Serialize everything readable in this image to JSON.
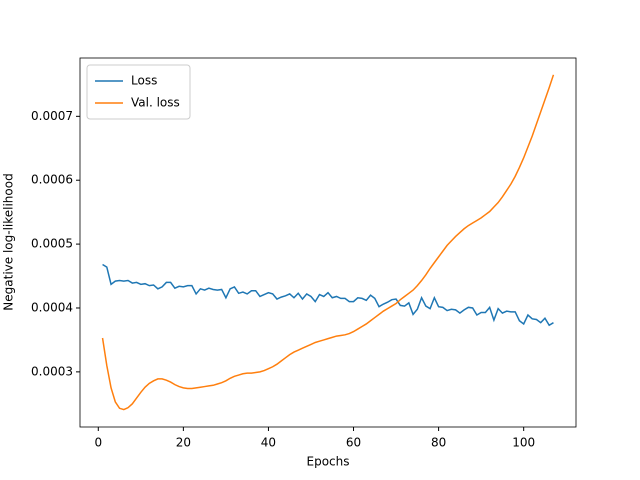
{
  "chart_data": {
    "type": "line",
    "xlabel": "Epochs",
    "ylabel": "Negative log-likelihood",
    "x": [
      1,
      2,
      3,
      4,
      5,
      6,
      7,
      8,
      9,
      10,
      11,
      12,
      13,
      14,
      15,
      16,
      17,
      18,
      19,
      20,
      21,
      22,
      23,
      24,
      25,
      26,
      27,
      28,
      29,
      30,
      31,
      32,
      33,
      34,
      35,
      36,
      37,
      38,
      39,
      40,
      41,
      42,
      43,
      44,
      45,
      46,
      47,
      48,
      49,
      50,
      51,
      52,
      53,
      54,
      55,
      56,
      57,
      58,
      59,
      60,
      61,
      62,
      63,
      64,
      65,
      66,
      67,
      68,
      69,
      70,
      71,
      72,
      73,
      74,
      75,
      76,
      77,
      78,
      79,
      80,
      81,
      82,
      83,
      84,
      85,
      86,
      87,
      88,
      89,
      90,
      91,
      92,
      93,
      94,
      95,
      96,
      97,
      98,
      99,
      100,
      101,
      102,
      103,
      104,
      105,
      106,
      107
    ],
    "series": [
      {
        "name": "Loss",
        "color": "#1f77b4",
        "values": [
          0.000468,
          0.000464,
          0.000437,
          0.000442,
          0.000443,
          0.000442,
          0.000443,
          0.000439,
          0.00044,
          0.000437,
          0.000438,
          0.000435,
          0.000436,
          0.00043,
          0.000433,
          0.00044,
          0.00044,
          0.000431,
          0.000434,
          0.000433,
          0.000435,
          0.000435,
          0.000422,
          0.00043,
          0.000428,
          0.000431,
          0.000429,
          0.000428,
          0.000429,
          0.000416,
          0.00043,
          0.000433,
          0.000423,
          0.000425,
          0.000422,
          0.000427,
          0.000427,
          0.000418,
          0.000421,
          0.000424,
          0.000422,
          0.000414,
          0.000417,
          0.000419,
          0.000422,
          0.000416,
          0.000423,
          0.000414,
          0.000422,
          0.000418,
          0.00041,
          0.000421,
          0.000418,
          0.000424,
          0.000416,
          0.000418,
          0.000415,
          0.000415,
          0.00041,
          0.00041,
          0.000416,
          0.000415,
          0.000412,
          0.00042,
          0.000415,
          0.000402,
          0.000406,
          0.000409,
          0.000413,
          0.000414,
          0.000404,
          0.000403,
          0.000408,
          0.00039,
          0.000398,
          0.000416,
          0.000403,
          0.000399,
          0.000416,
          0.000402,
          0.000401,
          0.000396,
          0.000398,
          0.000397,
          0.000392,
          0.000397,
          0.000401,
          0.0004,
          0.000389,
          0.000393,
          0.000393,
          0.000401,
          0.000381,
          0.000399,
          0.000392,
          0.000395,
          0.000394,
          0.000394,
          0.00038,
          0.000375,
          0.000389,
          0.000383,
          0.000382,
          0.000377,
          0.000384,
          0.000373,
          0.000377
        ]
      },
      {
        "name": "Val. loss",
        "color": "#ff7f0e",
        "values": [
          0.000353,
          0.00031,
          0.000275,
          0.000253,
          0.000243,
          0.000241,
          0.000244,
          0.00025,
          0.000259,
          0.000268,
          0.000276,
          0.000282,
          0.000286,
          0.000289,
          0.000289,
          0.000287,
          0.000284,
          0.00028,
          0.000277,
          0.000275,
          0.000274,
          0.000274,
          0.000275,
          0.000276,
          0.000277,
          0.000278,
          0.000279,
          0.000281,
          0.000283,
          0.000286,
          0.00029,
          0.000293,
          0.000295,
          0.000297,
          0.000298,
          0.000298,
          0.000299,
          0.0003,
          0.000302,
          0.000305,
          0.000308,
          0.000312,
          0.000317,
          0.000322,
          0.000327,
          0.000331,
          0.000334,
          0.000337,
          0.00034,
          0.000343,
          0.000346,
          0.000348,
          0.00035,
          0.000352,
          0.000354,
          0.000356,
          0.000357,
          0.000358,
          0.00036,
          0.000363,
          0.000367,
          0.000371,
          0.000375,
          0.00038,
          0.000385,
          0.00039,
          0.000395,
          0.000399,
          0.000403,
          0.000407,
          0.000413,
          0.000418,
          0.000423,
          0.000428,
          0.000435,
          0.000443,
          0.000452,
          0.000462,
          0.000471,
          0.00048,
          0.000489,
          0.000498,
          0.000505,
          0.000512,
          0.000518,
          0.000524,
          0.000529,
          0.000533,
          0.000537,
          0.000541,
          0.000546,
          0.000551,
          0.000558,
          0.000565,
          0.000574,
          0.000584,
          0.000594,
          0.000606,
          0.00062,
          0.000635,
          0.000652,
          0.000669,
          0.000688,
          0.000707,
          0.000726,
          0.000745,
          0.000765
        ]
      }
    ],
    "xlim": [
      -4.3,
      112.3
    ],
    "xticks": [
      0,
      20,
      40,
      60,
      80,
      100
    ],
    "ylim": [
      0.0002137,
      0.0007913
    ],
    "yticks": [
      0.0003,
      0.0004,
      0.0005,
      0.0006,
      0.0007
    ],
    "grid": false,
    "legend": "upper left"
  }
}
